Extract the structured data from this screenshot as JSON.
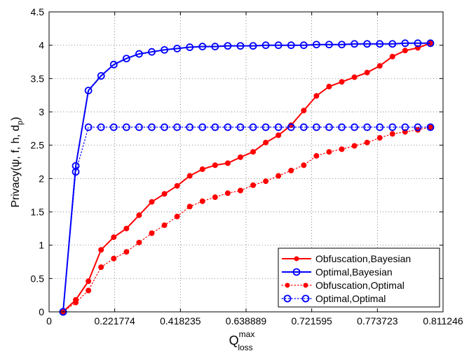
{
  "chart_data": {
    "type": "line",
    "xlabel": {
      "main": "Q",
      "sup": "max",
      "sub": "loss"
    },
    "ylabel": {
      "main": "Privacy(ψ, f, h, d",
      "sub": "p",
      "tail": ")"
    },
    "xtick_labels": [
      "0",
      "0.221774",
      "0.418235",
      "0.638889",
      "0.721595",
      "0.773723",
      "0.811246"
    ],
    "ytick_labels": [
      "0",
      "0.5",
      "1",
      "1.5",
      "2",
      "2.5",
      "3",
      "3.5",
      "4",
      "4.5"
    ],
    "ylim": [
      0,
      4.5
    ],
    "grid": true,
    "legend_position": "bottom-right",
    "x": [
      1,
      2,
      3,
      4,
      5,
      6,
      7,
      8,
      9,
      10,
      11,
      12,
      13,
      14,
      15,
      16,
      17,
      18,
      19,
      20,
      21,
      22,
      23,
      24,
      25,
      26,
      27,
      28,
      29,
      30
    ],
    "series": [
      {
        "name": "Obfuscation,Bayesian",
        "color": "#ff0000",
        "style": "solid",
        "marker": "dot",
        "values": [
          0,
          0.18,
          0.46,
          0.93,
          1.12,
          1.25,
          1.45,
          1.65,
          1.77,
          1.89,
          2.04,
          2.14,
          2.2,
          2.23,
          2.32,
          2.4,
          2.54,
          2.65,
          2.8,
          3.02,
          3.24,
          3.38,
          3.45,
          3.52,
          3.59,
          3.69,
          3.83,
          3.92,
          3.96,
          4.03
        ]
      },
      {
        "name": "Optimal,Bayesian",
        "color": "#0000ff",
        "style": "solid",
        "marker": "circle",
        "values": [
          0,
          2.19,
          3.32,
          3.54,
          3.71,
          3.8,
          3.87,
          3.9,
          3.93,
          3.95,
          3.97,
          3.98,
          3.98,
          3.99,
          3.99,
          3.99,
          4.0,
          4.0,
          4.0,
          4.0,
          4.01,
          4.01,
          4.01,
          4.02,
          4.02,
          4.02,
          4.02,
          4.03,
          4.03,
          4.03
        ]
      },
      {
        "name": "Obfuscation,Optimal",
        "color": "#ff0000",
        "style": "dotted",
        "marker": "dot",
        "values": [
          0,
          0.14,
          0.32,
          0.67,
          0.8,
          0.9,
          1.04,
          1.18,
          1.3,
          1.43,
          1.58,
          1.66,
          1.72,
          1.78,
          1.82,
          1.9,
          1.96,
          2.04,
          2.12,
          2.2,
          2.34,
          2.4,
          2.44,
          2.49,
          2.54,
          2.61,
          2.67,
          2.7,
          2.73,
          2.77
        ]
      },
      {
        "name": "Optimal,Optimal",
        "color": "#0000ff",
        "style": "dotted",
        "marker": "circle",
        "values": [
          0,
          2.1,
          2.77,
          2.77,
          2.77,
          2.77,
          2.77,
          2.77,
          2.77,
          2.77,
          2.77,
          2.77,
          2.77,
          2.77,
          2.77,
          2.77,
          2.77,
          2.77,
          2.77,
          2.77,
          2.77,
          2.77,
          2.77,
          2.77,
          2.77,
          2.77,
          2.77,
          2.77,
          2.77,
          2.77
        ]
      }
    ]
  }
}
